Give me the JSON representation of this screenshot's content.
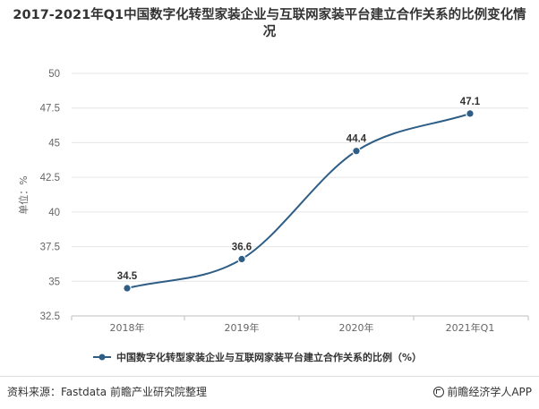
{
  "chart_data": {
    "type": "line",
    "title": "2017-2021年Q1中国数字化转型家装企业与互联网家装平台建立合作关系的比例变化情况",
    "ylabel": "单位：%",
    "xlabel": "",
    "categories": [
      "2018年",
      "2019年",
      "2020年",
      "2021年Q1"
    ],
    "series": [
      {
        "name": "中国数字化转型家装企业与互联网家装平台建立合作关系的比例（%）",
        "values": [
          34.5,
          36.6,
          44.4,
          47.1
        ],
        "labels": [
          "34.5",
          "36.6",
          "44.4",
          "47.1"
        ],
        "color": "#2e5d86"
      }
    ],
    "ylim": [
      32.5,
      50
    ],
    "yticks": [
      "32.5",
      "35",
      "37.5",
      "40",
      "42.5",
      "45",
      "47.5",
      "50"
    ],
    "grid": true,
    "legend_position": "bottom",
    "smooth": true
  },
  "footer": {
    "source": "资料来源：Fastdata 前瞻产业研究院整理",
    "brand": "前瞻经济学人APP"
  },
  "colors": {
    "line": "#2e5d86",
    "grid": "#e6e6e6",
    "axis_text": "#666666"
  }
}
